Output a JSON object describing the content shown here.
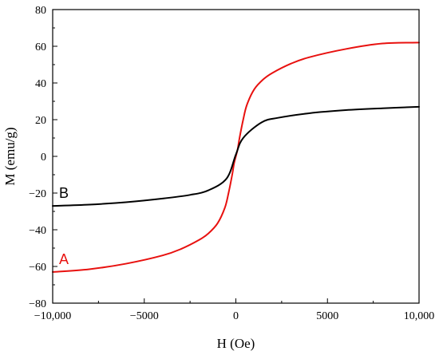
{
  "chart_data": {
    "type": "line",
    "title": "",
    "xlabel": "H (Oe)",
    "ylabel": "M (emu/g)",
    "xlim": [
      -10000,
      10000
    ],
    "ylim": [
      -80,
      80
    ],
    "x_ticks": [
      -10000,
      -5000,
      0,
      5000,
      10000
    ],
    "x_tick_labels": [
      "−10,000",
      "−5000",
      "0",
      "5000",
      "10,000"
    ],
    "y_ticks": [
      -80,
      -60,
      -40,
      -20,
      0,
      20,
      40,
      60,
      80
    ],
    "y_tick_labels": [
      "−80",
      "−60",
      "−40",
      "−20",
      "0",
      "20",
      "40",
      "60",
      "80"
    ],
    "grid": false,
    "series": [
      {
        "name": "A",
        "color": "#e8110f",
        "x": [
          -10000,
          -8000,
          -6000,
          -4000,
          -3000,
          -2000,
          -1500,
          -1000,
          -600,
          -400,
          -200,
          -100,
          0,
          100,
          200,
          400,
          600,
          1000,
          1500,
          2000,
          3000,
          4000,
          6000,
          8000,
          10000
        ],
        "y": [
          -63,
          -61.5,
          -58.5,
          -54,
          -50.5,
          -45.5,
          -42,
          -36.5,
          -28,
          -20,
          -10,
          -4,
          0,
          4,
          10,
          20,
          28,
          36.5,
          42,
          45.5,
          50.5,
          54,
          58.5,
          61.5,
          62
        ]
      },
      {
        "name": "B",
        "color": "#000000",
        "x": [
          -10000,
          -8000,
          -6000,
          -4000,
          -2500,
          -1500,
          -500,
          0,
          400,
          1400,
          2300,
          4000,
          6000,
          8000,
          10000
        ],
        "y": [
          -27,
          -26.3,
          -25,
          -23,
          -21,
          -18.5,
          -12,
          1,
          10,
          18.5,
          21,
          23.5,
          25.2,
          26.2,
          27
        ]
      }
    ]
  }
}
